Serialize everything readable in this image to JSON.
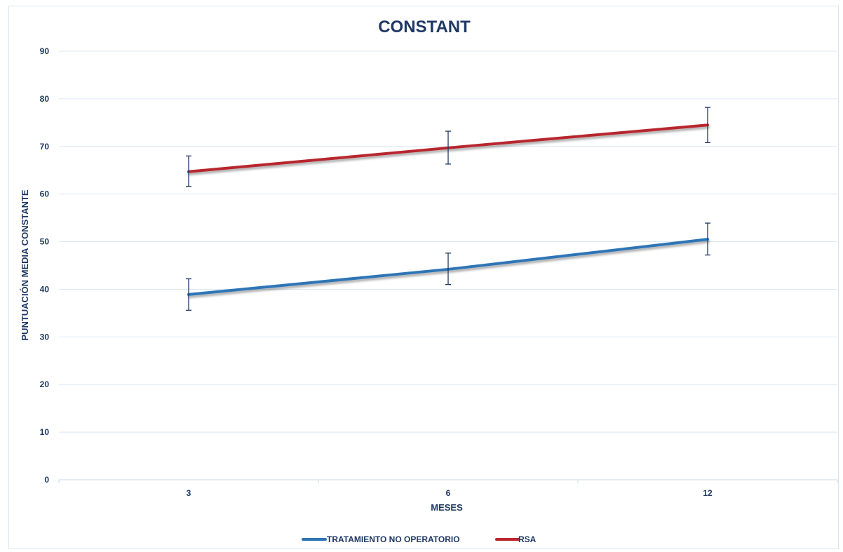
{
  "chart_data": {
    "type": "line",
    "title": "CONSTANT",
    "xlabel": "MESES",
    "ylabel": "PUNTUACIÓN MEDIA CONSTANTE",
    "categories": [
      "3",
      "6",
      "12"
    ],
    "ylim": [
      0,
      90
    ],
    "yticks": [
      0,
      10,
      20,
      30,
      40,
      50,
      60,
      70,
      80,
      90
    ],
    "grid": true,
    "legend_position": "bottom",
    "series": [
      {
        "name": "TRATAMIENTO NO OPERATORIO",
        "color": "#2e75b6",
        "values": [
          38.9,
          44.2,
          50.5
        ],
        "error_low": [
          35.6,
          41.0,
          47.2
        ],
        "error_high": [
          42.2,
          47.6,
          53.9
        ]
      },
      {
        "name": "RSA",
        "color": "#b8282e",
        "values": [
          64.7,
          69.7,
          74.5
        ],
        "error_low": [
          61.6,
          66.3,
          70.8
        ],
        "error_high": [
          68.0,
          73.2,
          78.2
        ]
      }
    ]
  }
}
